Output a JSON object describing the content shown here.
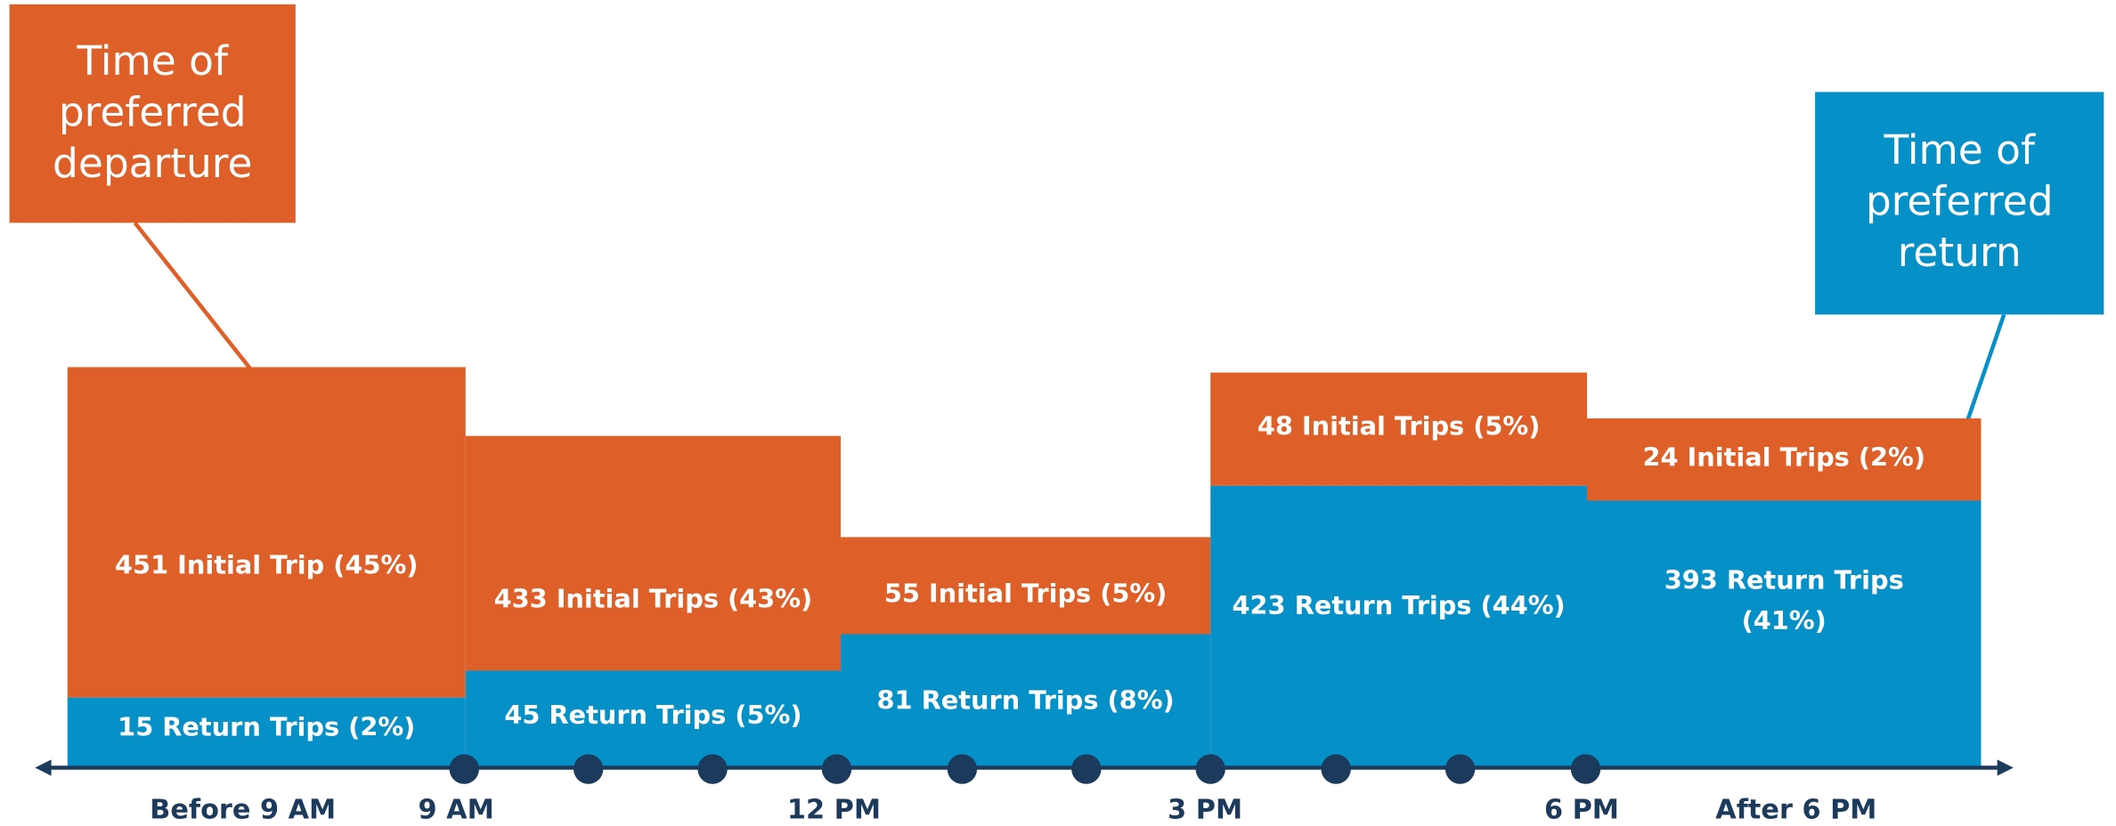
{
  "callouts": [
    {
      "lines": [
        "Time of",
        "preferred",
        "departure"
      ]
    },
    {
      "lines": [
        "Time of",
        "preferred",
        "return"
      ]
    }
  ],
  "blocks": [
    {
      "initial": [
        "451 Initial Trip (45%)"
      ],
      "return": [
        "15 Return Trips (2%)"
      ]
    },
    {
      "initial": [
        "433 Initial Trips (43%)"
      ],
      "return": [
        "45 Return Trips (5%)"
      ]
    },
    {
      "initial": [
        "55 Initial Trips (5%)"
      ],
      "return": [
        "81 Return Trips (8%)"
      ]
    },
    {
      "initial": [
        "48 Initial Trips (5%)"
      ],
      "return": [
        "423 Return Trips (44%)"
      ]
    },
    {
      "initial": [
        "24 Initial Trips (2%)"
      ],
      "return": [
        "393 Return Trips",
        "(41%)"
      ]
    }
  ],
  "axis_labels": [
    "Before 9 AM",
    "9 AM",
    "12 PM",
    "3 PM",
    "6 PM",
    "After 6 PM"
  ]
}
